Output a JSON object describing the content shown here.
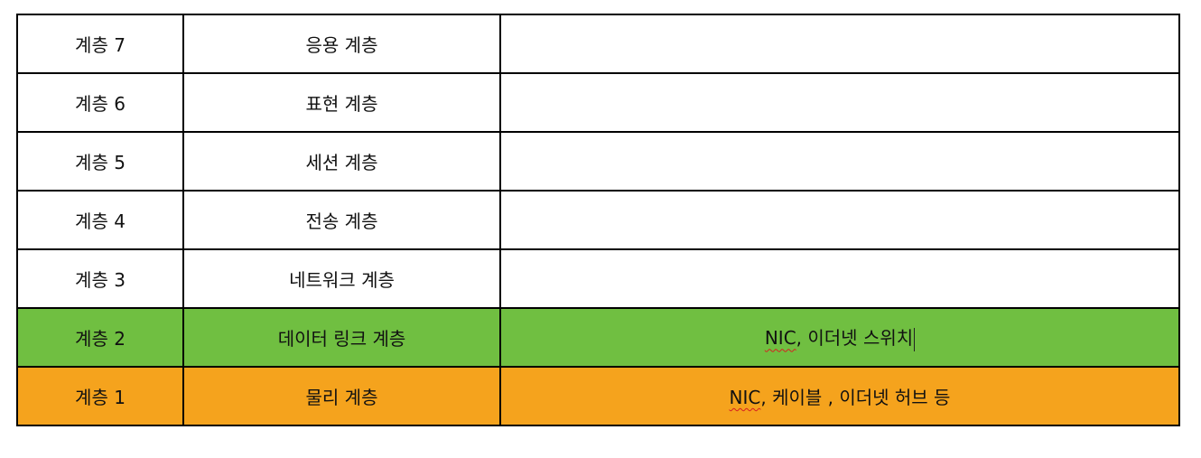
{
  "rows": [
    {
      "level": "계층  7",
      "name": "응용 계층",
      "devices_nic": "",
      "devices_rest": ""
    },
    {
      "level": "계층  6",
      "name": "표현 계층",
      "devices_nic": "",
      "devices_rest": ""
    },
    {
      "level": "계층  5",
      "name": "세션 계층",
      "devices_nic": "",
      "devices_rest": ""
    },
    {
      "level": "계층  4",
      "name": "전송 계층",
      "devices_nic": "",
      "devices_rest": ""
    },
    {
      "level": "계층  3",
      "name": "네트워크 계층",
      "devices_nic": "",
      "devices_rest": ""
    },
    {
      "level": "계층  2",
      "name": "데이터 링크 계층",
      "devices_nic": "NIC",
      "devices_rest": ",  이더넷 스위치"
    },
    {
      "level": "계층  1",
      "name": "물리 계층",
      "devices_nic": "NIC",
      "devices_rest": ",  케이블 ,  이더넷 허브 등"
    }
  ],
  "colors": {
    "layer2_background": "#70bf41",
    "layer1_background": "#f5a31d",
    "border": "#000000",
    "spellcheck_underline": "#d62020"
  }
}
